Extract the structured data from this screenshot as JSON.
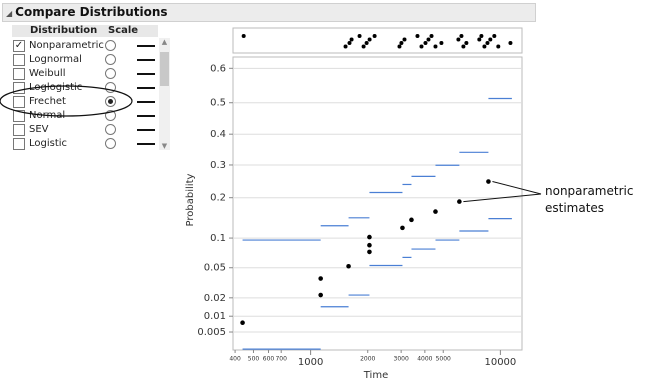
{
  "panel": {
    "title": "Compare Distributions",
    "headers": [
      "Distribution",
      "Scale"
    ],
    "rows": [
      {
        "label": "Nonparametric",
        "checked": true,
        "scale": false
      },
      {
        "label": "Lognormal",
        "checked": false,
        "scale": false
      },
      {
        "label": "Weibull",
        "checked": false,
        "scale": false
      },
      {
        "label": "Loglogistic",
        "checked": false,
        "scale": false
      },
      {
        "label": "Frechet",
        "checked": false,
        "scale": true
      },
      {
        "label": "Normal",
        "checked": false,
        "scale": false
      },
      {
        "label": "SEV",
        "checked": false,
        "scale": false
      },
      {
        "label": "Logistic",
        "checked": false,
        "scale": false
      }
    ]
  },
  "chart_data": {
    "type": "scatter",
    "x_label": "Time",
    "y_label": "Probability",
    "x_scale": "log",
    "y_scale": "frechet",
    "grid": true,
    "xlim": [
      390,
      13000
    ],
    "xticks": [
      400,
      500,
      600,
      700,
      1000,
      2000,
      3000,
      4000,
      5000,
      10000
    ],
    "ylim": [
      0.002,
      0.63
    ],
    "yticks": [
      0.005,
      0.01,
      0.02,
      0.05,
      0.1,
      0.2,
      0.3,
      0.4,
      0.5,
      0.6
    ],
    "annotation": "nonparametric estimates",
    "x": [
      438,
      1130,
      1130,
      1585,
      2042,
      2042,
      2042,
      3048,
      3400,
      4550,
      6080,
      8650
    ],
    "series": [
      {
        "color": "#000000",
        "values": [
          0.0076,
          0.037,
          0.022,
          0.052,
          0.074,
          0.086,
          0.102,
          0.122,
          0.141,
          0.162,
          0.189,
          0.248
        ]
      }
    ],
    "band_edges": [
      438,
      1130,
      1585,
      2042,
      3048,
      3400,
      4550,
      6080,
      8650,
      11500
    ],
    "band_color": "#4a7fd4",
    "upper_band": [
      0.096,
      0.127,
      0.146,
      0.215,
      0.239,
      0.264,
      0.299,
      0.341,
      0.513
    ],
    "lower_band": [
      0.0021,
      0.0145,
      0.022,
      0.053,
      0.065,
      0.079,
      0.096,
      0.115,
      0.144
    ],
    "rug_x": [
      444,
      1528,
      1603,
      1644,
      1811,
      1902,
      1973,
      2046,
      2174,
      2940,
      3010,
      3124,
      3657,
      3840,
      4030,
      4180,
      4337,
      4550,
      4890,
      6010,
      6235,
      6385,
      6620,
      7745,
      7943,
      8240,
      8550,
      8850,
      9290,
      9750,
      11300
    ]
  }
}
